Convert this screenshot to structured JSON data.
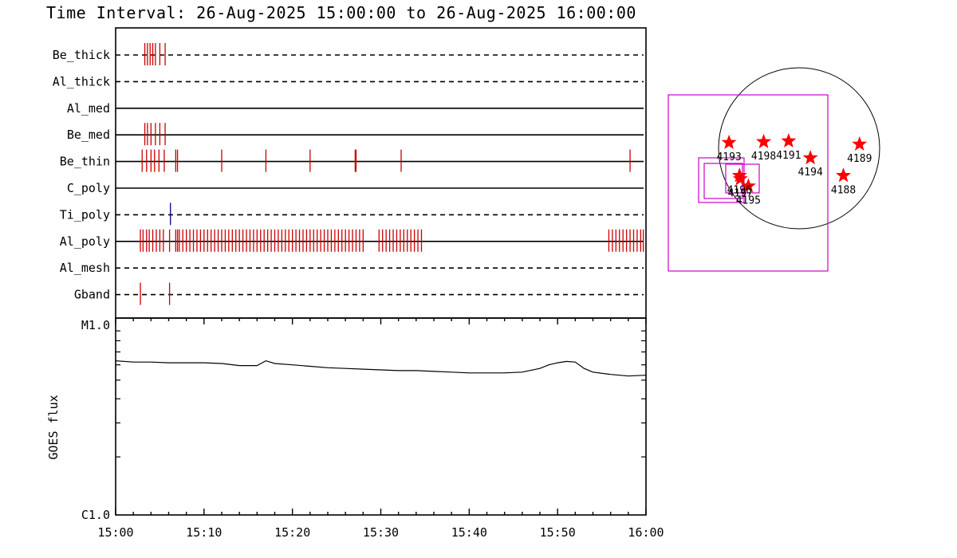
{
  "title": "Time Interval: 26-Aug-2025 15:00:00 to 26-Aug-2025 16:00:00",
  "colors": {
    "events": "#cc0000",
    "ti_event": "#000088",
    "goes_line": "#000000",
    "magenta": "#cc00cc",
    "star": "#ff0000"
  },
  "chart_data": [
    {
      "type": "event_timeline",
      "x_range": [
        "15:00",
        "16:00"
      ],
      "filters": [
        {
          "name": "Be_thick",
          "line": "dashed",
          "events": [
            3.3,
            3.6,
            3.9,
            4.2,
            4.5,
            5.0,
            5.6
          ]
        },
        {
          "name": "Al_thick",
          "line": "dashed",
          "events": []
        },
        {
          "name": "Al_med",
          "line": "solid",
          "events": []
        },
        {
          "name": "Be_med",
          "line": "solid",
          "events": [
            3.3,
            3.6,
            4.0,
            4.5,
            5.0,
            5.6
          ]
        },
        {
          "name": "Be_thin",
          "line": "solid",
          "events": [
            3.0,
            3.5,
            4.0,
            4.4,
            4.9,
            5.5,
            6.8,
            7.0,
            12.0,
            17.0,
            22.0,
            27.1,
            27.2,
            32.3,
            58.2
          ]
        },
        {
          "name": "C_poly",
          "line": "solid",
          "events": []
        },
        {
          "name": "Ti_poly",
          "line": "dashed",
          "events": [
            6.2
          ],
          "event_color": "ti_event"
        },
        {
          "name": "Al_poly",
          "line": "solid",
          "events": [
            2.8,
            3.1,
            3.5,
            3.8,
            4.2,
            4.6,
            5.0,
            5.4,
            6.1,
            6.8,
            7.0,
            7.2,
            7.6,
            8.0,
            8.4,
            8.8,
            9.2,
            9.6,
            10.0,
            10.4,
            10.8,
            11.2,
            11.6,
            12.0,
            12.4,
            12.8,
            13.2,
            13.6,
            14.0,
            14.4,
            14.8,
            15.2,
            15.6,
            16.0,
            16.4,
            16.8,
            17.2,
            17.6,
            18.0,
            18.4,
            18.8,
            19.2,
            19.6,
            20.0,
            20.4,
            20.8,
            21.2,
            21.6,
            22.0,
            22.4,
            22.8,
            23.2,
            23.6,
            24.0,
            24.4,
            24.8,
            25.2,
            25.6,
            26.0,
            26.4,
            26.8,
            27.2,
            27.6,
            28.0,
            29.8,
            30.2,
            30.6,
            31.0,
            31.4,
            31.8,
            32.2,
            32.6,
            33.0,
            33.4,
            33.8,
            34.2,
            34.6,
            55.8,
            56.2,
            56.6,
            57.0,
            57.4,
            57.8,
            58.2,
            58.6,
            59.0,
            59.4,
            59.7
          ]
        },
        {
          "name": "Al_mesh",
          "line": "dashed",
          "events": []
        },
        {
          "name": "Gband",
          "line": "dashed",
          "events": [
            2.8,
            6.1
          ]
        }
      ]
    },
    {
      "type": "line",
      "ylabel": "GOES flux",
      "yscale": "log",
      "ylim_labels": [
        "C1.0",
        "M1.0"
      ],
      "ylim": [
        1e-06,
        1e-05
      ],
      "x_tick_labels": [
        "15:00",
        "15:10",
        "15:20",
        "15:30",
        "15:40",
        "15:50",
        "16:00"
      ],
      "x_minutes": [
        0,
        2,
        4,
        6,
        8,
        10,
        12,
        14,
        16,
        17,
        18,
        20,
        22,
        24,
        26,
        28,
        30,
        32,
        34,
        36,
        38,
        40,
        42,
        44,
        46,
        48,
        49,
        50,
        51,
        52,
        53,
        54,
        56,
        58,
        60
      ],
      "y_flux": [
        6.3e-06,
        6.2e-06,
        6.2e-06,
        6.15e-06,
        6.15e-06,
        6.15e-06,
        6.1e-06,
        5.95e-06,
        5.95e-06,
        6.3e-06,
        6.1e-06,
        6e-06,
        5.9e-06,
        5.8e-06,
        5.75e-06,
        5.7e-06,
        5.65e-06,
        5.6e-06,
        5.6e-06,
        5.55e-06,
        5.5e-06,
        5.45e-06,
        5.45e-06,
        5.45e-06,
        5.5e-06,
        5.75e-06,
        6e-06,
        6.15e-06,
        6.25e-06,
        6.2e-06,
        5.75e-06,
        5.5e-06,
        5.35e-06,
        5.25e-06,
        5.3e-06
      ]
    },
    {
      "type": "scatter",
      "description_labels": "active regions on solar disk",
      "points": [
        {
          "label": "4193",
          "x": -0.87,
          "y": 0.07
        },
        {
          "label": "4198",
          "x": -0.44,
          "y": 0.08
        },
        {
          "label": "4191",
          "x": -0.13,
          "y": 0.09
        },
        {
          "label": "4194",
          "x": 0.14,
          "y": -0.12
        },
        {
          "label": "4189",
          "x": 0.75,
          "y": 0.05
        },
        {
          "label": "4188",
          "x": 0.55,
          "y": -0.34
        },
        {
          "label": "4197",
          "x": -0.73,
          "y": -0.38
        },
        {
          "label": "4195",
          "x": -0.63,
          "y": -0.47
        },
        {
          "label": "4196",
          "x": -0.74,
          "y": -0.34
        }
      ]
    }
  ]
}
